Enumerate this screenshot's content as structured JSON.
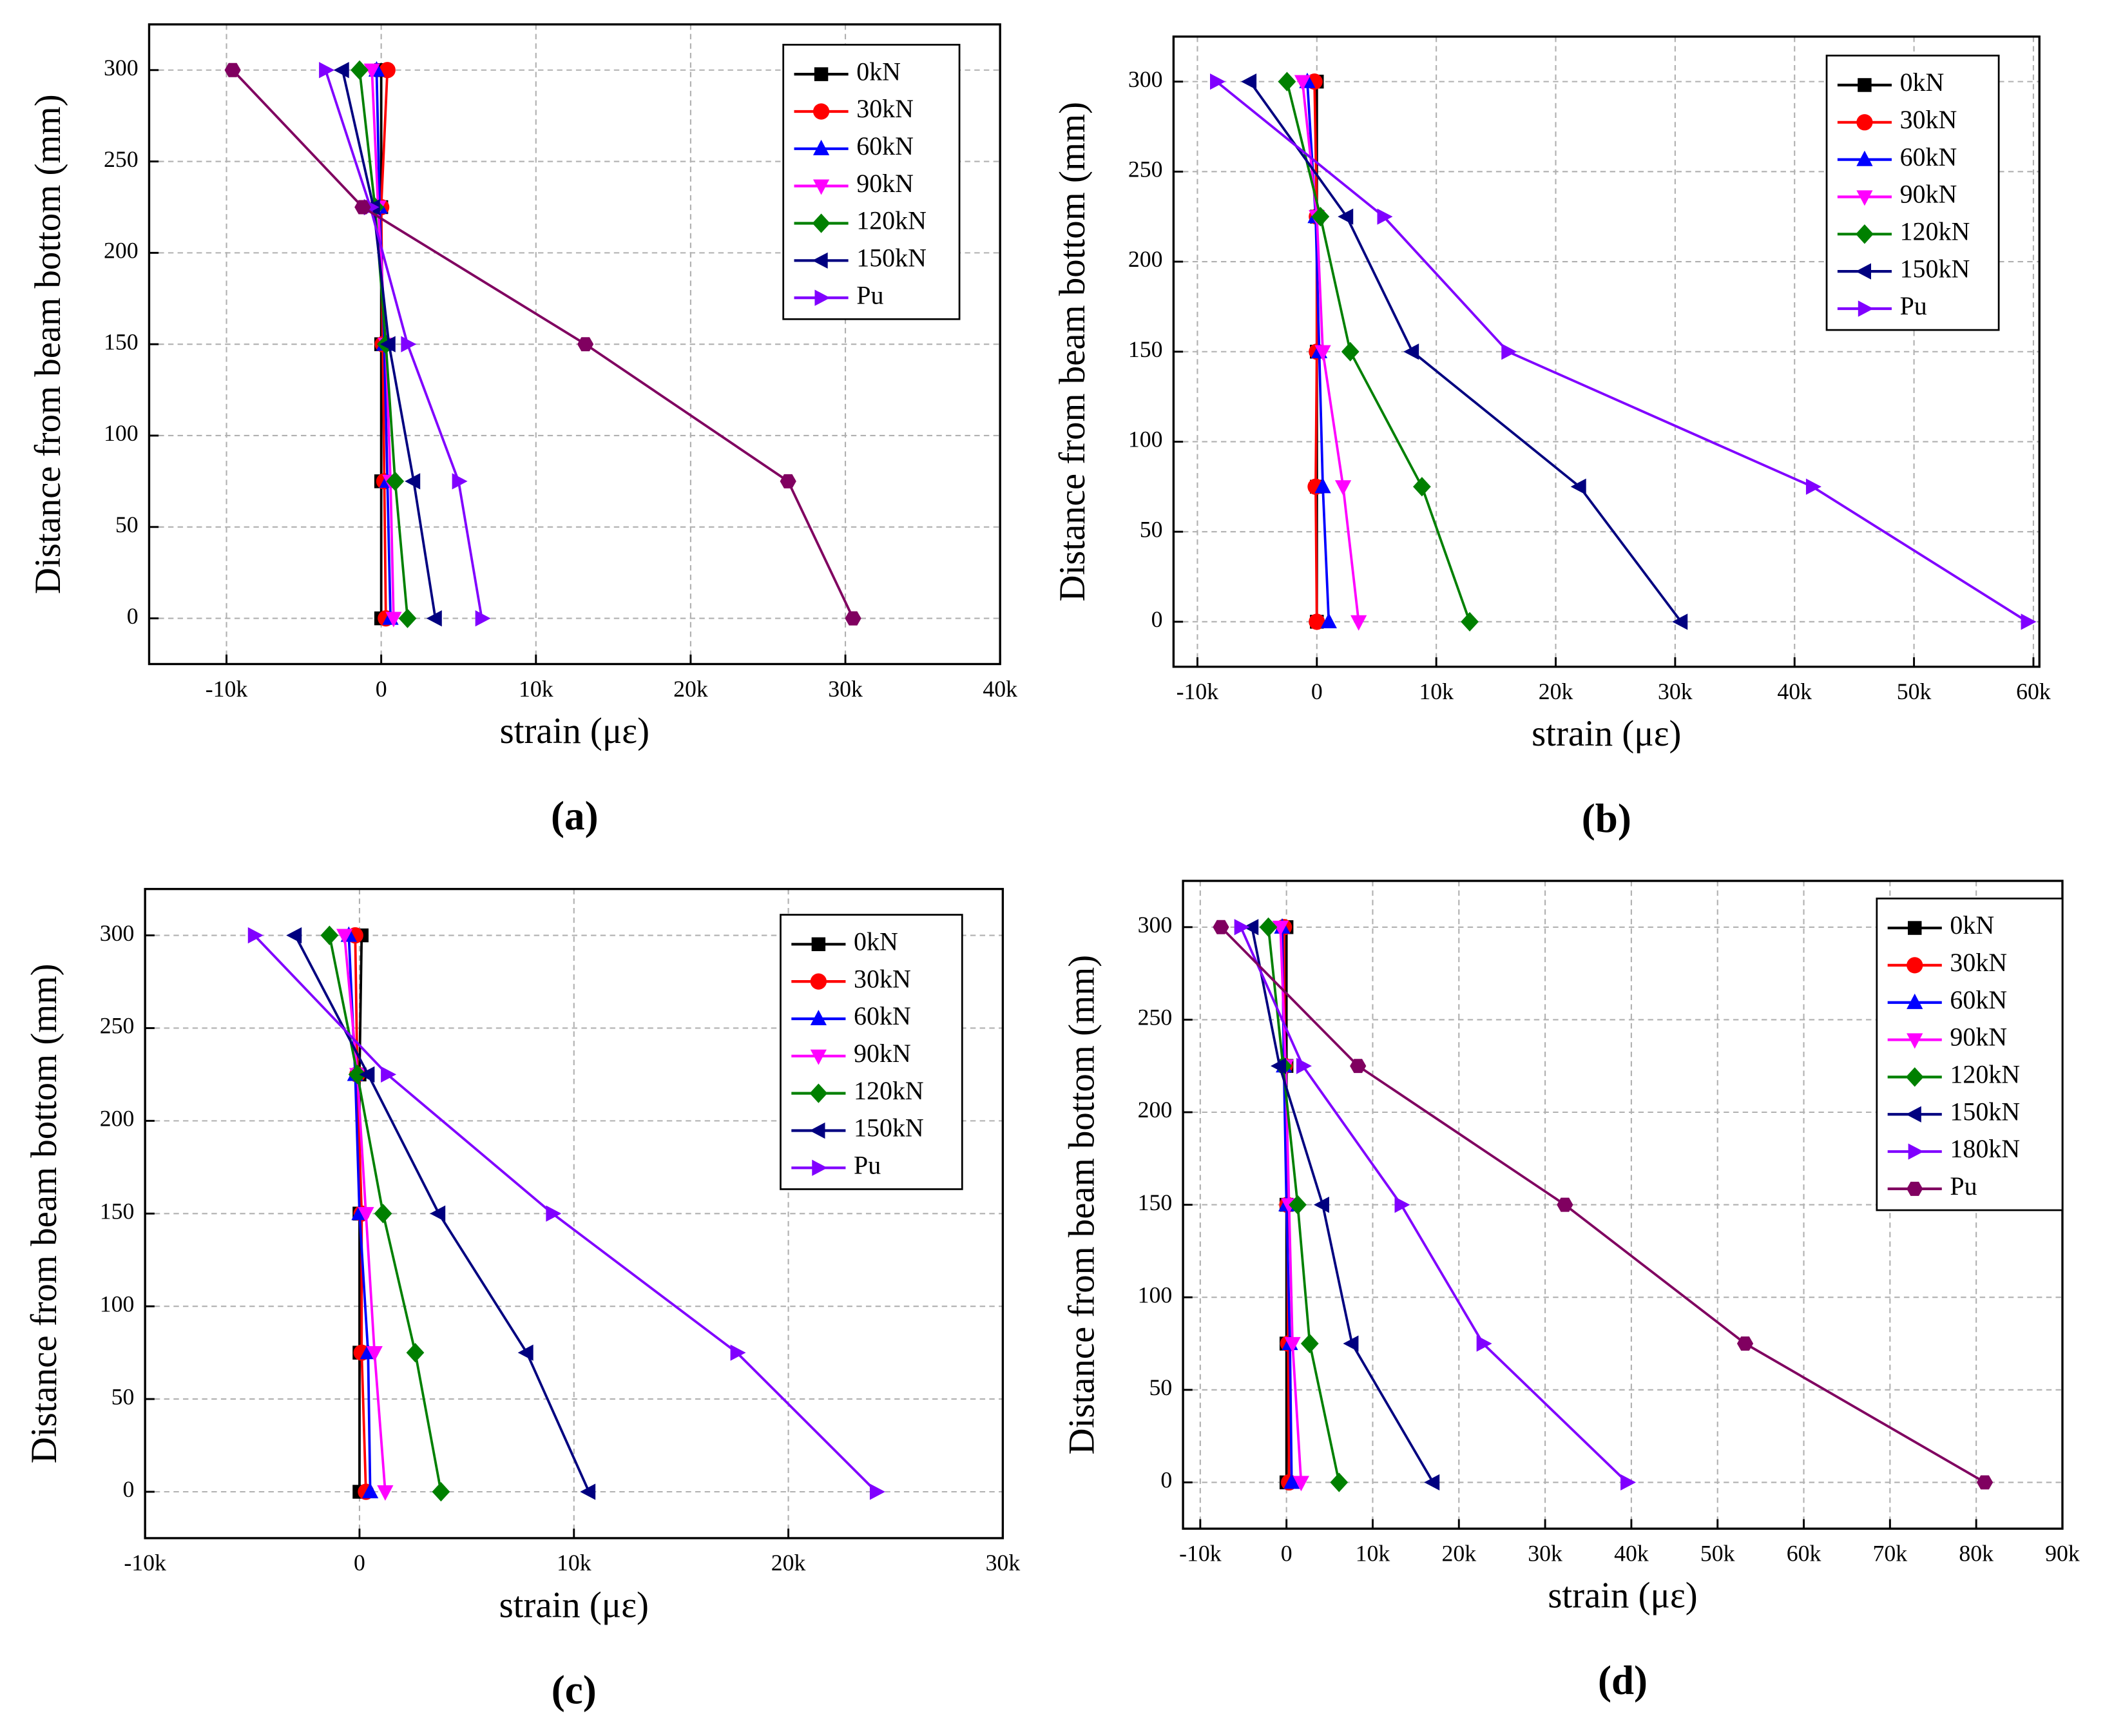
{
  "chart_data": [
    {
      "type": "line",
      "label": "(a)",
      "xlabel": "strain (με)",
      "ylabel": "Distance from beam bottom (mm)",
      "grid": true,
      "xlim": [
        -15000,
        40000
      ],
      "ylim": [
        -25,
        325
      ],
      "xticks": [
        {
          "value": -10000,
          "label": "-10k"
        },
        {
          "value": 0,
          "label": "0"
        },
        {
          "value": 10000,
          "label": "10k"
        },
        {
          "value": 20000,
          "label": "20k"
        },
        {
          "value": 30000,
          "label": "30k"
        },
        {
          "value": 40000,
          "label": "40k"
        }
      ],
      "yticks": [
        0,
        50,
        100,
        150,
        200,
        250,
        300
      ],
      "series": [
        {
          "name": "0kN",
          "color": "#000000",
          "marker": "square",
          "x": [
            0,
            0,
            0,
            0,
            0
          ],
          "values": [
            0,
            75,
            150,
            225,
            300
          ]
        },
        {
          "name": "30kN",
          "color": "#ff0000",
          "marker": "circle",
          "x": [
            300,
            200,
            100,
            0,
            400
          ],
          "values": [
            0,
            75,
            150,
            225,
            300
          ]
        },
        {
          "name": "60kN",
          "color": "#0000ff",
          "marker": "up",
          "x": [
            600,
            400,
            200,
            -100,
            -300
          ],
          "values": [
            0,
            75,
            150,
            225,
            300
          ]
        },
        {
          "name": "90kN",
          "color": "#ff00ff",
          "marker": "down",
          "x": [
            800,
            600,
            300,
            -200,
            -600
          ],
          "values": [
            0,
            75,
            150,
            225,
            300
          ]
        },
        {
          "name": "120kN",
          "color": "#008000",
          "marker": "diamond",
          "x": [
            1700,
            900,
            300,
            -400,
            -1400
          ],
          "values": [
            0,
            75,
            150,
            225,
            300
          ]
        },
        {
          "name": "150kN",
          "color": "#000080",
          "marker": "left",
          "x": [
            3500,
            2100,
            500,
            -500,
            -2500
          ],
          "values": [
            0,
            75,
            150,
            225,
            300
          ]
        },
        {
          "name": "Pu",
          "color": "#8000ff",
          "marker": "right",
          "x": [
            6500,
            5000,
            1700,
            -700,
            -3600
          ],
          "values": [
            0,
            75,
            150,
            225,
            300
          ]
        },
        {
          "color": "#800060",
          "marker": "hexagon",
          "x": [
            30500,
            26300,
            13200,
            -1200,
            -9600
          ],
          "values": [
            0,
            75,
            150,
            225,
            300
          ]
        }
      ]
    },
    {
      "type": "line",
      "label": "(b)",
      "xlabel": "strain (με)",
      "ylabel": "Distance from beam bottom (mm)",
      "grid": true,
      "xlim": [
        -12000,
        60500
      ],
      "ylim": [
        -25,
        325
      ],
      "xticks": [
        {
          "value": -10000,
          "label": "-10k"
        },
        {
          "value": 0,
          "label": "0"
        },
        {
          "value": 10000,
          "label": "10k"
        },
        {
          "value": 20000,
          "label": "20k"
        },
        {
          "value": 30000,
          "label": "30k"
        },
        {
          "value": 40000,
          "label": "40k"
        },
        {
          "value": 50000,
          "label": "50k"
        },
        {
          "value": 60000,
          "label": "60k"
        }
      ],
      "yticks": [
        0,
        50,
        100,
        150,
        200,
        250,
        300
      ],
      "series": [
        {
          "name": "0kN",
          "color": "#000000",
          "marker": "square",
          "x": [
            0,
            0,
            0,
            0,
            0
          ],
          "values": [
            0,
            75,
            150,
            225,
            300
          ]
        },
        {
          "name": "30kN",
          "color": "#ff0000",
          "marker": "circle",
          "x": [
            0,
            -100,
            0,
            0,
            -200
          ],
          "values": [
            0,
            75,
            150,
            225,
            300
          ]
        },
        {
          "name": "60kN",
          "color": "#0000ff",
          "marker": "up",
          "x": [
            1000,
            500,
            200,
            -100,
            -800
          ],
          "values": [
            0,
            75,
            150,
            225,
            300
          ]
        },
        {
          "name": "90kN",
          "color": "#ff00ff",
          "marker": "down",
          "x": [
            3500,
            2200,
            500,
            0,
            -1200
          ],
          "values": [
            0,
            75,
            150,
            225,
            300
          ]
        },
        {
          "name": "120kN",
          "color": "#008000",
          "marker": "diamond",
          "x": [
            12800,
            8800,
            2800,
            300,
            -2500
          ],
          "values": [
            0,
            75,
            150,
            225,
            300
          ]
        },
        {
          "name": "150kN",
          "color": "#000080",
          "marker": "left",
          "x": [
            30500,
            22000,
            8000,
            2500,
            -5600
          ],
          "values": [
            0,
            75,
            150,
            225,
            300
          ]
        },
        {
          "name": "Pu",
          "color": "#8000ff",
          "marker": "right",
          "x": [
            59500,
            41500,
            16000,
            5600,
            -8400
          ],
          "values": [
            0,
            75,
            150,
            225,
            300
          ]
        }
      ]
    },
    {
      "type": "line",
      "label": "(c)",
      "xlabel": "strain (με)",
      "ylabel": "Distance from beam bottom (mm)",
      "grid": true,
      "xlim": [
        -10000,
        30000
      ],
      "ylim": [
        -25,
        325
      ],
      "xticks": [
        {
          "value": -10000,
          "label": "-10k"
        },
        {
          "value": 0,
          "label": "0"
        },
        {
          "value": 10000,
          "label": "10k"
        },
        {
          "value": 20000,
          "label": "20k"
        },
        {
          "value": 30000,
          "label": "30k"
        }
      ],
      "yticks": [
        0,
        50,
        100,
        150,
        200,
        250,
        300
      ],
      "series": [
        {
          "name": "0kN",
          "color": "#000000",
          "marker": "square",
          "x": [
            0,
            0,
            0,
            0,
            100
          ],
          "values": [
            0,
            75,
            150,
            225,
            300
          ]
        },
        {
          "name": "30kN",
          "color": "#ff0000",
          "marker": "circle",
          "x": [
            300,
            100,
            100,
            -100,
            -200
          ],
          "values": [
            0,
            75,
            150,
            225,
            300
          ]
        },
        {
          "name": "60kN",
          "color": "#0000ff",
          "marker": "up",
          "x": [
            500,
            400,
            0,
            -200,
            -500
          ],
          "values": [
            0,
            75,
            150,
            225,
            300
          ]
        },
        {
          "name": "90kN",
          "color": "#ff00ff",
          "marker": "down",
          "x": [
            1200,
            700,
            300,
            -100,
            -700
          ],
          "values": [
            0,
            75,
            150,
            225,
            300
          ]
        },
        {
          "name": "120kN",
          "color": "#008000",
          "marker": "diamond",
          "x": [
            3800,
            2600,
            1100,
            -100,
            -1400
          ],
          "values": [
            0,
            75,
            150,
            225,
            300
          ]
        },
        {
          "name": "150kN",
          "color": "#000080",
          "marker": "left",
          "x": [
            10700,
            7800,
            3700,
            400,
            -3000
          ],
          "values": [
            0,
            75,
            150,
            225,
            300
          ]
        },
        {
          "name": "Pu",
          "color": "#8000ff",
          "marker": "right",
          "x": [
            24100,
            17600,
            9000,
            1300,
            -4900
          ],
          "values": [
            0,
            75,
            150,
            225,
            300
          ]
        }
      ]
    },
    {
      "type": "line",
      "label": "(d)",
      "xlabel": "strain (με)",
      "ylabel": "Distance from beam bottom (mm)",
      "grid": true,
      "xlim": [
        -12000,
        90000
      ],
      "ylim": [
        -25,
        325
      ],
      "xticks": [
        {
          "value": -10000,
          "label": "-10k"
        },
        {
          "value": 0,
          "label": "0"
        },
        {
          "value": 10000,
          "label": "10k"
        },
        {
          "value": 20000,
          "label": "20k"
        },
        {
          "value": 30000,
          "label": "30k"
        },
        {
          "value": 40000,
          "label": "40k"
        },
        {
          "value": 50000,
          "label": "50k"
        },
        {
          "value": 60000,
          "label": "60k"
        },
        {
          "value": 70000,
          "label": "70k"
        },
        {
          "value": 80000,
          "label": "80k"
        },
        {
          "value": 90000,
          "label": "90k"
        }
      ],
      "yticks": [
        0,
        50,
        100,
        150,
        200,
        250,
        300
      ],
      "series": [
        {
          "name": "0kN",
          "color": "#000000",
          "marker": "square",
          "x": [
            0,
            0,
            0,
            0,
            0
          ],
          "values": [
            0,
            75,
            150,
            225,
            300
          ]
        },
        {
          "name": "30kN",
          "color": "#ff0000",
          "marker": "circle",
          "x": [
            300,
            200,
            100,
            -200,
            -300
          ],
          "values": [
            0,
            75,
            150,
            225,
            300
          ]
        },
        {
          "name": "60kN",
          "color": "#0000ff",
          "marker": "up",
          "x": [
            600,
            400,
            0,
            -300,
            -500
          ],
          "values": [
            0,
            75,
            150,
            225,
            300
          ]
        },
        {
          "name": "90kN",
          "color": "#ff00ff",
          "marker": "down",
          "x": [
            1700,
            700,
            300,
            -100,
            -700
          ],
          "values": [
            0,
            75,
            150,
            225,
            300
          ]
        },
        {
          "name": "120kN",
          "color": "#008000",
          "marker": "diamond",
          "x": [
            6100,
            2700,
            1300,
            -400,
            -2100
          ],
          "values": [
            0,
            75,
            150,
            225,
            300
          ]
        },
        {
          "name": "150kN",
          "color": "#000080",
          "marker": "left",
          "x": [
            17000,
            7600,
            4200,
            -800,
            -4000
          ],
          "values": [
            0,
            75,
            150,
            225,
            300
          ]
        },
        {
          "name": "180kN",
          "color": "#8000ff",
          "marker": "right",
          "x": [
            39500,
            22800,
            13300,
            1900,
            -5300
          ],
          "values": [
            0,
            75,
            150,
            225,
            300
          ]
        },
        {
          "name": "Pu",
          "color": "#800060",
          "marker": "hexagon",
          "x": [
            81000,
            53200,
            32300,
            8300,
            -7600
          ],
          "values": [
            0,
            75,
            150,
            225,
            300
          ]
        }
      ]
    }
  ]
}
